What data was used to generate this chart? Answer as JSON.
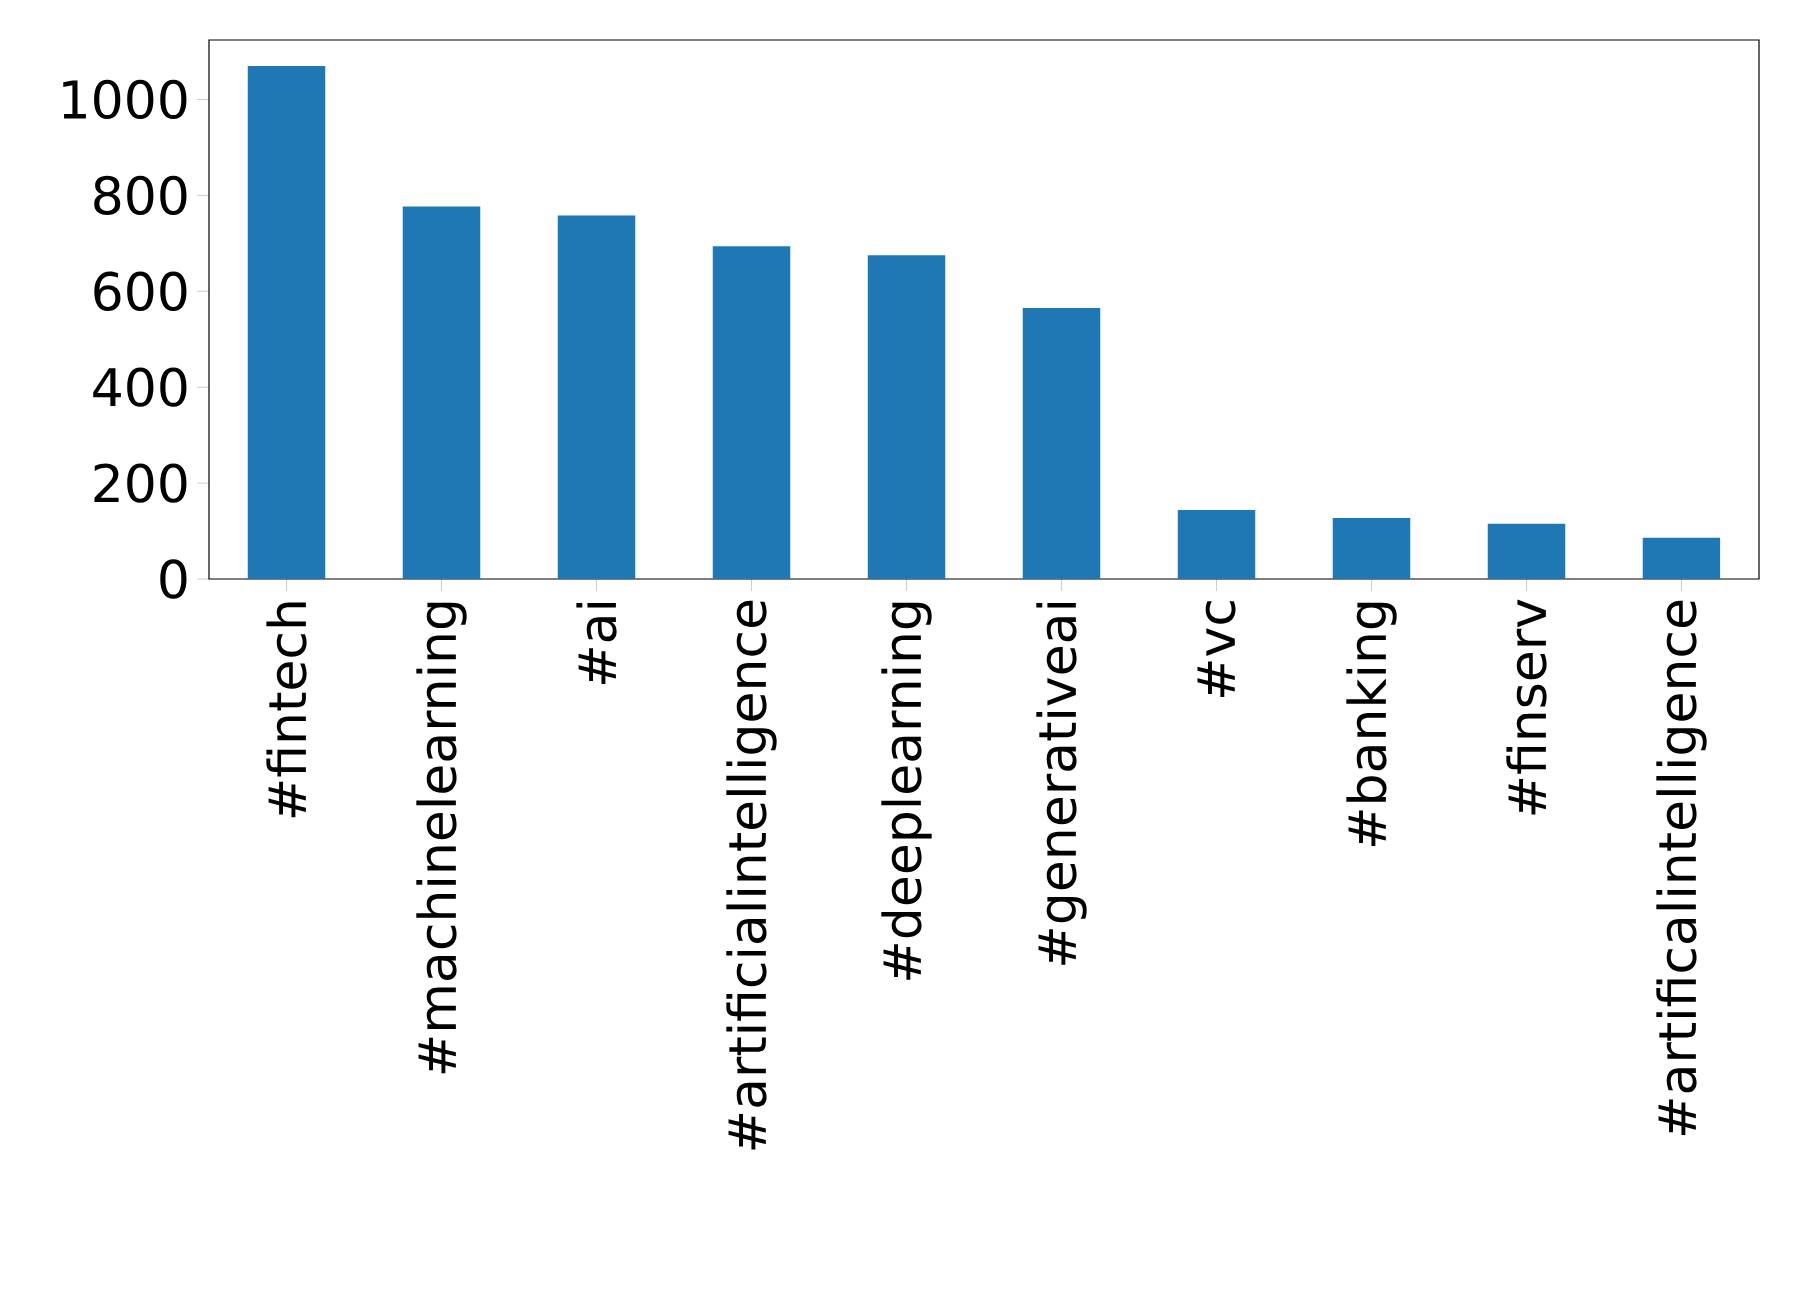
{
  "chart_data": {
    "type": "bar",
    "categories": [
      "#fintech",
      "#machinelearning",
      "#ai",
      "#artificialintelligence",
      "#deeplearning",
      "#generativeai",
      "#vc",
      "#banking",
      "#finserv",
      "#artificalintelligence"
    ],
    "values": [
      1070,
      777,
      758,
      694,
      675,
      565,
      144,
      127,
      115,
      86
    ],
    "color": "#1f77b4",
    "ylim": [
      0,
      1124
    ],
    "yticks": [
      0,
      200,
      400,
      600,
      800,
      1000
    ],
    "grid": false
  }
}
